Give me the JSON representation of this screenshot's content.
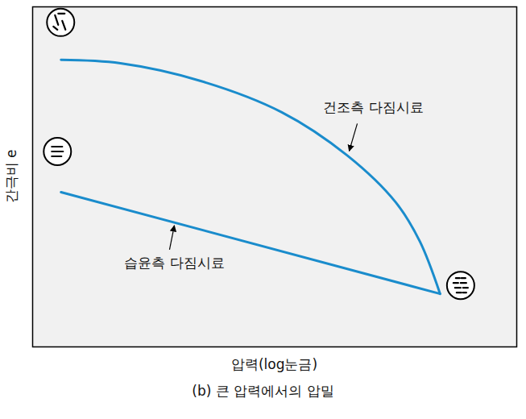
{
  "chart_data": {
    "type": "line",
    "caption": "(b) 큰 압력에서의 압밀",
    "x_label": "압력(log눈금)",
    "y_label": "간극비 e",
    "log": "x",
    "xlim": [
      1,
      1000
    ],
    "ylim": [
      0,
      1
    ],
    "tick_labels": false,
    "grid": false,
    "series": [
      {
        "name": "건조측 다짐시료",
        "color": "#1a8ccc",
        "x": [
          1.5,
          3.5,
          11,
          35,
          89,
          178,
          251,
          335
        ],
        "values": [
          0.844,
          0.834,
          0.782,
          0.69,
          0.563,
          0.425,
          0.31,
          0.156
        ]
      },
      {
        "name": "습윤측 다짐시료",
        "color": "#1a8ccc",
        "x": [
          1.5,
          335
        ],
        "values": [
          0.455,
          0.156
        ]
      }
    ]
  }
}
